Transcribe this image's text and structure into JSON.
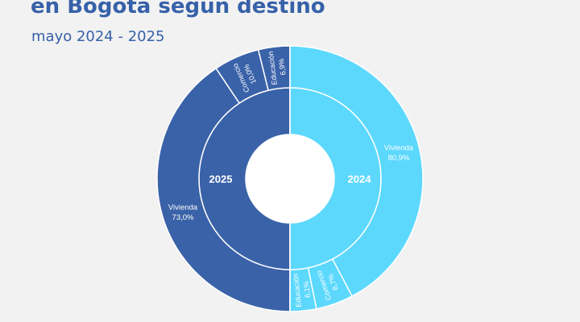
{
  "title": "en Bogotá según destino",
  "subtitle": "mayo 2024 - 2025",
  "colors": {
    "series_2025": "#3a62a8",
    "series_2024": "#5cd8fd",
    "separator": "#ffffff"
  },
  "chart_data": {
    "type": "pie",
    "title": "en Bogotá según destino",
    "subtitle": "mayo 2024 - 2025",
    "series": [
      {
        "name": "2025",
        "categories": [
          "Vivienda",
          "Comercio",
          "Educación"
        ],
        "values": [
          73.0,
          10.0,
          6.9
        ],
        "value_labels": [
          "73,0%",
          "10,0%",
          "6,9%"
        ]
      },
      {
        "name": "2024",
        "categories": [
          "Vivienda",
          "Comercio",
          "Educación"
        ],
        "values": [
          80.9,
          8.7,
          6.1
        ],
        "value_labels": [
          "80,9%",
          "8,7%",
          "6,1%"
        ]
      }
    ]
  }
}
